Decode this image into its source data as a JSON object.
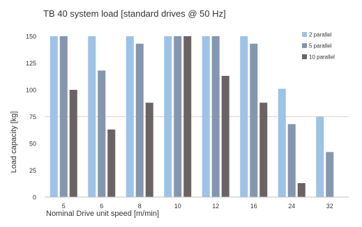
{
  "chart_data": {
    "type": "bar",
    "title": "TB 40 system load [standard drives @ 50 Hz]",
    "xlabel": "Nominal Drive unit speed [m/min]",
    "ylabel": "Load capacity [kg]",
    "ylim": [
      0,
      150
    ],
    "yticks": [
      0,
      25,
      50,
      75,
      100,
      125,
      150
    ],
    "categories": [
      "5",
      "6",
      "8",
      "10",
      "12",
      "16",
      "24",
      "32"
    ],
    "series": [
      {
        "name": "2 parallel",
        "color": "#9dc3e6",
        "values": [
          150,
          150,
          150,
          150,
          150,
          150,
          101,
          75
        ]
      },
      {
        "name": "5 parallel",
        "color": "#8496b0",
        "values": [
          150,
          118,
          143,
          150,
          150,
          143,
          68,
          42
        ]
      },
      {
        "name": "10 parallel",
        "color": "#6b6363",
        "values": [
          100,
          63,
          88,
          150,
          113,
          88,
          13,
          null
        ]
      }
    ],
    "grid": false,
    "legend_position": "top-right",
    "reference_line": {
      "y": 75,
      "color": "#f4cccc"
    }
  }
}
